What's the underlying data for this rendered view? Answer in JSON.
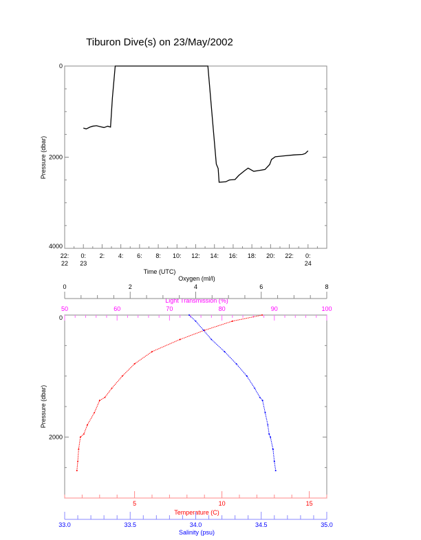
{
  "title": "Tiburon Dive(s) on 23/May/2002",
  "chart_data": [
    {
      "type": "line",
      "title": "Tiburon Dive(s) on 23/May/2002",
      "xlabel": "Time (UTC)",
      "ylabel": "Pressure (dbar)",
      "xlim_hours": [
        -2,
        26
      ],
      "ylim": [
        4000,
        0
      ],
      "x_ticks": [
        {
          "h": -2,
          "l1": "22:",
          "l2": "22"
        },
        {
          "h": 0,
          "l1": "0:",
          "l2": "23"
        },
        {
          "h": 2,
          "l1": "2:",
          "l2": ""
        },
        {
          "h": 4,
          "l1": "4:",
          "l2": ""
        },
        {
          "h": 6,
          "l1": "6:",
          "l2": ""
        },
        {
          "h": 8,
          "l1": "8:",
          "l2": ""
        },
        {
          "h": 10,
          "l1": "10:",
          "l2": ""
        },
        {
          "h": 12,
          "l1": "12:",
          "l2": ""
        },
        {
          "h": 14,
          "l1": "14:",
          "l2": ""
        },
        {
          "h": 16,
          "l1": "16:",
          "l2": ""
        },
        {
          "h": 18,
          "l1": "18:",
          "l2": ""
        },
        {
          "h": 20,
          "l1": "20:",
          "l2": ""
        },
        {
          "h": 22,
          "l1": "22:",
          "l2": ""
        },
        {
          "h": 24,
          "l1": "0:",
          "l2": "24"
        }
      ],
      "y_ticks": [
        0,
        2000,
        4000
      ],
      "series": [
        {
          "name": "pressure",
          "color": "#000000",
          "hours": [
            0,
            0.3,
            0.7,
            1.0,
            1.4,
            1.8,
            2.2,
            2.6,
            2.9,
            3.1,
            3.4,
            5,
            8,
            10,
            12,
            13.3,
            13.8,
            14.2,
            14.4,
            14.5,
            15.2,
            15.6,
            16.2,
            16.6,
            17.2,
            17.6,
            18.2,
            18.8,
            19.4,
            19.9,
            20.1,
            20.5,
            21.5,
            22.5,
            23.4,
            23.7,
            24.0
          ],
          "pressure": [
            1360,
            1380,
            1340,
            1320,
            1310,
            1330,
            1350,
            1320,
            1340,
            700,
            0,
            0,
            0,
            0,
            0,
            0,
            1200,
            2150,
            2250,
            2550,
            2540,
            2500,
            2490,
            2400,
            2300,
            2240,
            2310,
            2290,
            2270,
            2160,
            2050,
            1990,
            1970,
            1950,
            1940,
            1920,
            1860
          ]
        }
      ]
    },
    {
      "type": "line",
      "ylabel": "Pressure (dbar)",
      "ylim": [
        3000,
        0
      ],
      "y_ticks": [
        0,
        2000
      ],
      "axes": {
        "oxygen": {
          "label": "Oxygen (ml/l)",
          "range": [
            0,
            8
          ],
          "ticks": [
            "0",
            "2",
            "4",
            "6",
            "8"
          ],
          "color": "#000000"
        },
        "light_transmission": {
          "label": "Light Transmission (%)",
          "range": [
            50,
            100
          ],
          "ticks": [
            "50",
            "60",
            "70",
            "80",
            "90",
            "100"
          ],
          "color": "#ff00ff"
        },
        "temperature": {
          "label": "Temperature (C)",
          "range": [
            1,
            16
          ],
          "ticks": [
            "5",
            "10",
            "15"
          ],
          "color": "#ff0000"
        },
        "salinity": {
          "label": "Salinity (psu)",
          "range": [
            33.0,
            35.0
          ],
          "ticks": [
            "33.0",
            "33.5",
            "34.0",
            "34.5",
            "35.0"
          ],
          "color": "#0000ff"
        }
      },
      "series": [
        {
          "name": "Temperature",
          "color": "#ff0000",
          "pressure": [
            0,
            100,
            250,
            400,
            600,
            800,
            1000,
            1200,
            1350,
            1400,
            1600,
            1800,
            1950,
            2000,
            2200,
            2400,
            2550
          ],
          "values": [
            12.3,
            10.6,
            9.0,
            7.6,
            6.0,
            5.0,
            4.3,
            3.7,
            3.3,
            3.0,
            2.7,
            2.3,
            2.1,
            1.9,
            1.8,
            1.75,
            1.7
          ]
        },
        {
          "name": "Salinity",
          "color": "#0000ff",
          "pressure": [
            0,
            100,
            250,
            400,
            600,
            800,
            1000,
            1200,
            1350,
            1400,
            1600,
            1800,
            1950,
            2000,
            2200,
            2400,
            2550
          ],
          "values": [
            33.95,
            34.0,
            34.06,
            34.12,
            34.22,
            34.31,
            34.39,
            34.45,
            34.49,
            34.51,
            34.53,
            34.55,
            34.56,
            34.57,
            34.59,
            34.6,
            34.61
          ]
        }
      ]
    }
  ]
}
